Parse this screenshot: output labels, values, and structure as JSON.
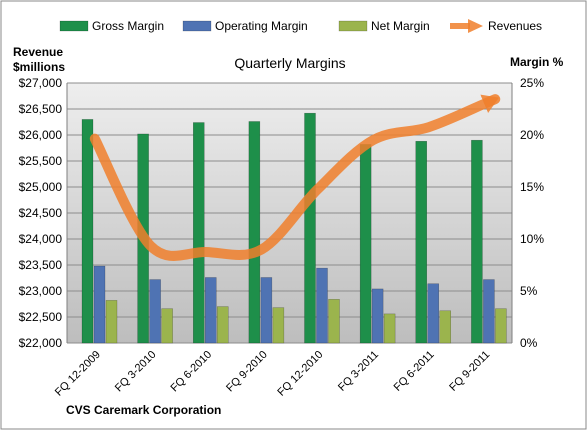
{
  "chart_data": {
    "type": "bar",
    "title": "Quarterly Margins",
    "company": "CVS Caremark Corporation",
    "left_axis": {
      "label_line1": "Revenue",
      "label_line2": "$millions",
      "range": [
        22000,
        27000
      ],
      "step": 500,
      "tick_labels": [
        "$22,000",
        "$22,500",
        "$23,000",
        "$23,500",
        "$24,000",
        "$24,500",
        "$25,000",
        "$25,500",
        "$26,000",
        "$26,500",
        "$27,000"
      ]
    },
    "right_axis": {
      "label": "Margin %",
      "range": [
        0,
        25
      ],
      "step": 5,
      "tick_labels": [
        "0%",
        "5%",
        "10%",
        "15%",
        "20%",
        "25%"
      ]
    },
    "categories": [
      "FQ 12-2009",
      "FQ 3-2010",
      "FQ 6-2010",
      "FQ 9-2010",
      "FQ 12-2010",
      "FQ 3-2011",
      "FQ 6-2011",
      "FQ 9-2011"
    ],
    "series": [
      {
        "name": "Gross Margin",
        "axis": "right",
        "type": "bar",
        "color": "#1e8f4a",
        "values": [
          21.5,
          20.1,
          21.2,
          21.3,
          22.1,
          19.1,
          19.4,
          19.5
        ]
      },
      {
        "name": "Operating Margin",
        "axis": "right",
        "type": "bar",
        "color": "#4f73b3",
        "values": [
          7.4,
          6.1,
          6.3,
          6.3,
          7.2,
          5.2,
          5.7,
          6.1
        ]
      },
      {
        "name": "Net Margin",
        "axis": "right",
        "type": "bar",
        "color": "#9bb44d",
        "values": [
          4.1,
          3.3,
          3.5,
          3.4,
          4.2,
          2.8,
          3.1,
          3.3
        ]
      },
      {
        "name": "Revenues",
        "axis": "left",
        "type": "line",
        "color": "#f07f2c",
        "values": [
          25930,
          23870,
          23750,
          23800,
          24950,
          25900,
          26150,
          26600
        ]
      }
    ],
    "grid": true,
    "legend_position": "top"
  }
}
